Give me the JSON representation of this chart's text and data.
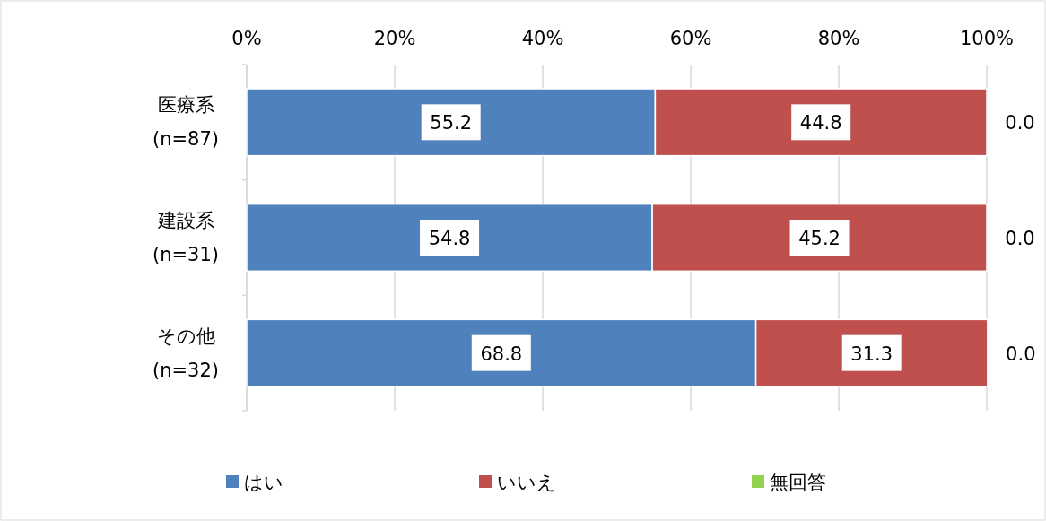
{
  "chart_data": {
    "type": "bar",
    "orientation": "horizontal",
    "stacked": true,
    "categories": [
      "医療系\n(n=87)",
      "建設系\n(n=31)",
      "その他\n(n=32)"
    ],
    "series": [
      {
        "name": "はい",
        "color": "#4f81bd",
        "values": [
          55.2,
          54.8,
          68.8
        ],
        "value_labels": [
          "55.2",
          "54.8",
          "68.8"
        ]
      },
      {
        "name": "いいえ",
        "color": "#c0504d",
        "values": [
          44.8,
          45.2,
          31.3
        ],
        "value_labels": [
          "44.8",
          "45.2",
          "31.3"
        ]
      },
      {
        "name": "無回答",
        "color": "#92d050",
        "values": [
          0.0,
          0.0,
          0.0
        ],
        "value_labels": [
          "0.0",
          "0.0",
          "0.0"
        ]
      }
    ],
    "xlim": [
      0,
      100
    ],
    "xticks": [
      {
        "value": 0,
        "label": "0%"
      },
      {
        "value": 20,
        "label": "20%"
      },
      {
        "value": 40,
        "label": "40%"
      },
      {
        "value": 60,
        "label": "60%"
      },
      {
        "value": 80,
        "label": "80%"
      },
      {
        "value": 100,
        "label": "100%"
      }
    ],
    "grid": "x",
    "legend": "bottom"
  }
}
